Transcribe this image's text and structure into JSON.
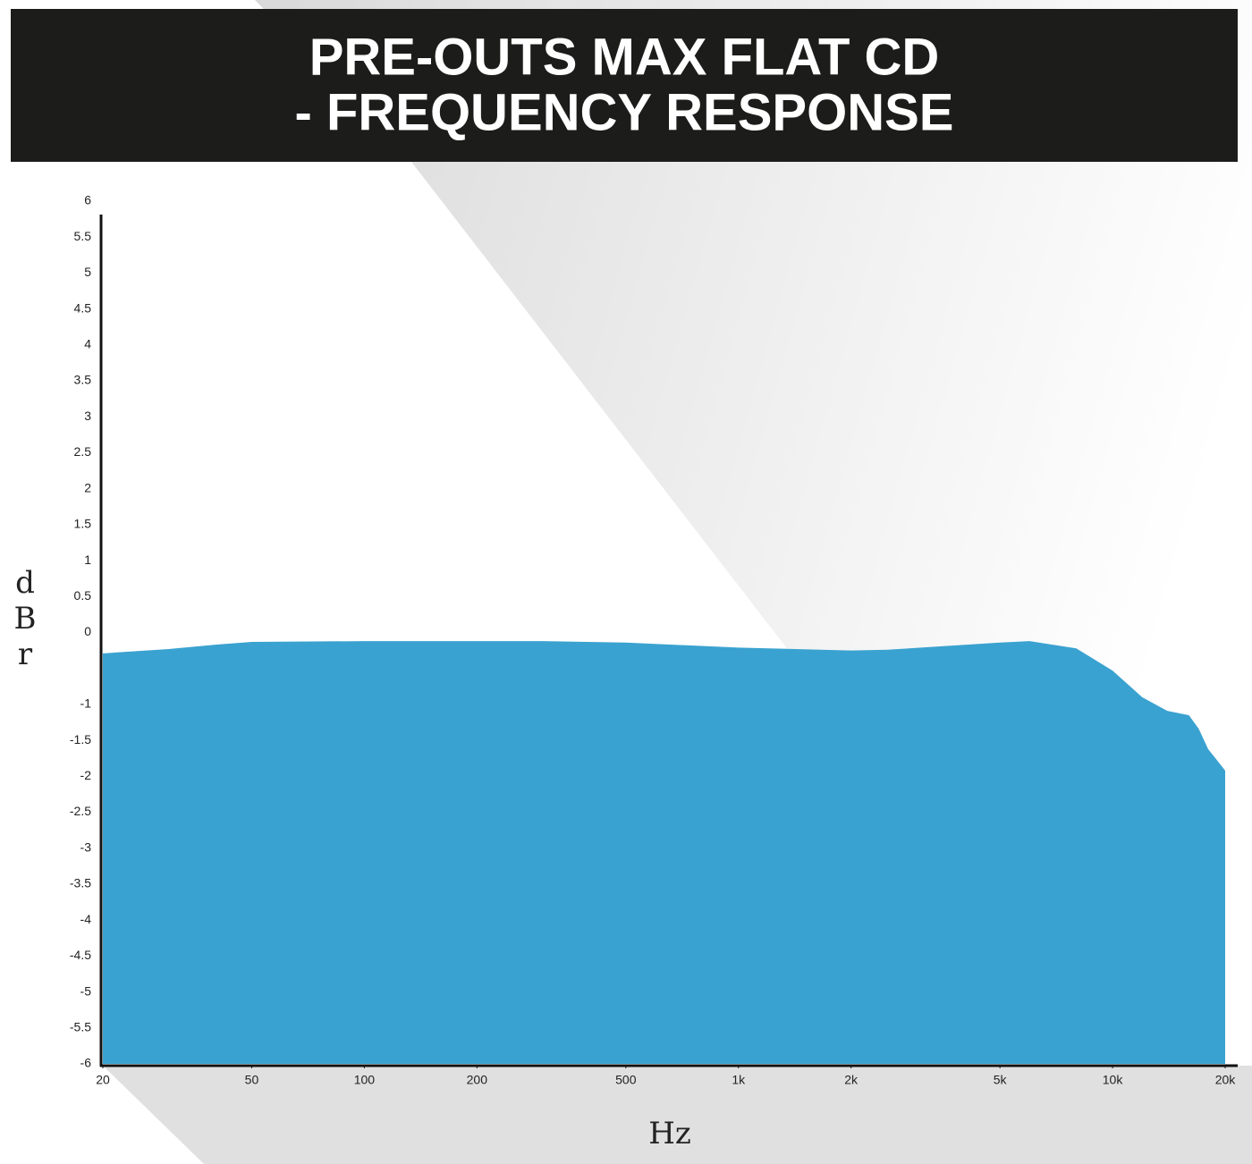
{
  "chart_data": {
    "type": "area",
    "title": [
      "PRE-OUTS MAX FLAT CD",
      "- FREQUENCY RESPONSE"
    ],
    "x_label": "Hz",
    "y_label": "dBr",
    "x": [
      20,
      30,
      40,
      50,
      100,
      200,
      300,
      500,
      1000,
      2000,
      2500,
      5000,
      6000,
      8000,
      10000,
      12000,
      14000,
      16000,
      17000,
      18000,
      20000
    ],
    "series": [
      {
        "color": "#3aa2d0",
        "values": [
          -0.29,
          -0.23,
          -0.17,
          -0.13,
          -0.12,
          -0.12,
          -0.12,
          -0.14,
          -0.21,
          -0.25,
          -0.24,
          -0.14,
          -0.12,
          -0.22,
          -0.53,
          -0.9,
          -1.09,
          -1.15,
          -1.34,
          -1.62,
          -1.92
        ]
      }
    ],
    "xlim": [
      20,
      20000
    ],
    "log_x": true,
    "xticks": [
      20,
      50,
      100,
      200,
      500,
      {
        "value": 1000,
        "label": "1k"
      },
      {
        "value": 2000,
        "label": "2k"
      },
      {
        "value": 5000,
        "label": "5k"
      },
      {
        "value": 10000,
        "label": "10k"
      },
      {
        "value": 20000,
        "label": "20k"
      }
    ],
    "ylim": [
      -6,
      6
    ],
    "yticks": [
      6,
      5.5,
      5,
      4.5,
      4,
      3.5,
      3,
      2.5,
      2,
      1.5,
      1,
      0.5,
      0,
      -1,
      -1.5,
      -2,
      -2.5,
      -3,
      -3.5,
      -4,
      -4.5,
      -5,
      -5.5,
      -6
    ]
  }
}
